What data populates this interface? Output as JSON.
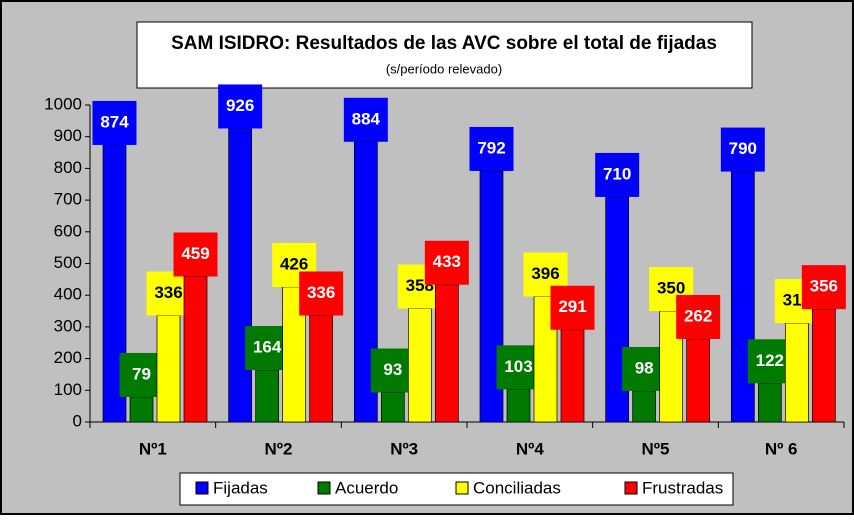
{
  "chart_data": {
    "type": "bar",
    "title": "SAM ISIDRO: Resultados de las AVC sobre el total de fijadas",
    "subtitle": "(s/período relevado)",
    "categories": [
      "Nº1",
      "Nº2",
      "Nº3",
      "Nº4",
      "Nº5",
      "Nº 6"
    ],
    "series": [
      {
        "name": "Fijadas",
        "color": "#0000ff",
        "label_color": "#ffffff",
        "values": [
          874,
          926,
          884,
          792,
          710,
          790
        ]
      },
      {
        "name": "Acuerdo",
        "color": "#007a00",
        "label_color": "#ffffff",
        "values": [
          79,
          164,
          93,
          103,
          98,
          122
        ]
      },
      {
        "name": "Conciliadas",
        "color": "#ffff00",
        "label_color": "#000000",
        "values": [
          336,
          426,
          358,
          396,
          350,
          312
        ]
      },
      {
        "name": "Frustradas",
        "color": "#ff0000",
        "label_color": "#ffffff",
        "values": [
          459,
          336,
          433,
          291,
          262,
          356
        ]
      }
    ],
    "ylim": [
      0,
      1000
    ],
    "yticks": [
      0,
      100,
      200,
      300,
      400,
      500,
      600,
      700,
      800,
      900,
      1000
    ],
    "legend": "bottom"
  }
}
